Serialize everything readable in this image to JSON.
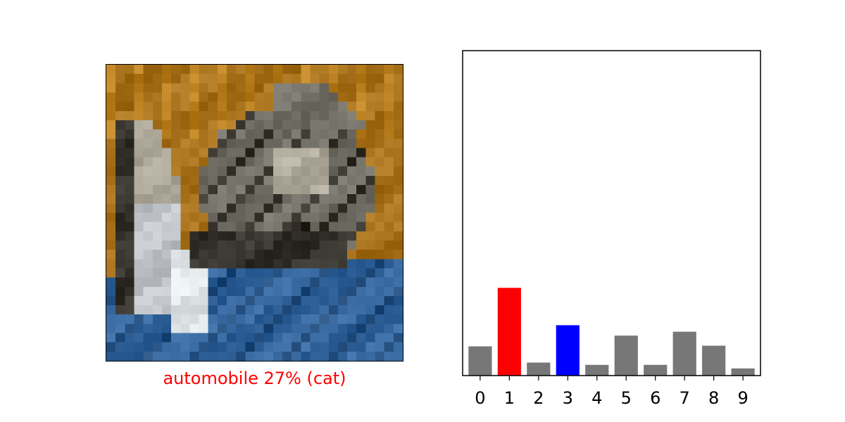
{
  "image_panel": {
    "prediction_caption": "automobile 27% (cat)",
    "caption_color": "#ff0000",
    "image_subject": "pixelated cat on blue background",
    "palette": {
      "bg_orange": "#b07a25",
      "bg_orange_light": "#c48a2a",
      "blue_base": "#3d6fa6",
      "blue_dark": "#2b5585",
      "cat_gray": "#7c7a70",
      "cat_dark": "#3f3c36",
      "cat_light": "#b9b4a6",
      "white_patch": "#e9eef0",
      "paw_light": "#c9ccd0"
    }
  },
  "chart_data": {
    "type": "bar",
    "categories": [
      "0",
      "1",
      "2",
      "3",
      "4",
      "5",
      "6",
      "7",
      "8",
      "9"
    ],
    "values": [
      0.09,
      0.27,
      0.04,
      0.155,
      0.033,
      0.123,
      0.033,
      0.135,
      0.092,
      0.022
    ],
    "ylim": [
      0,
      1
    ],
    "colors": [
      "#777777",
      "#ff0000",
      "#777777",
      "#0000ff",
      "#777777",
      "#777777",
      "#777777",
      "#777777",
      "#777777",
      "#777777"
    ],
    "predicted_index": 1,
    "true_index": 3,
    "y_ticks_visible": false,
    "grid": false
  }
}
